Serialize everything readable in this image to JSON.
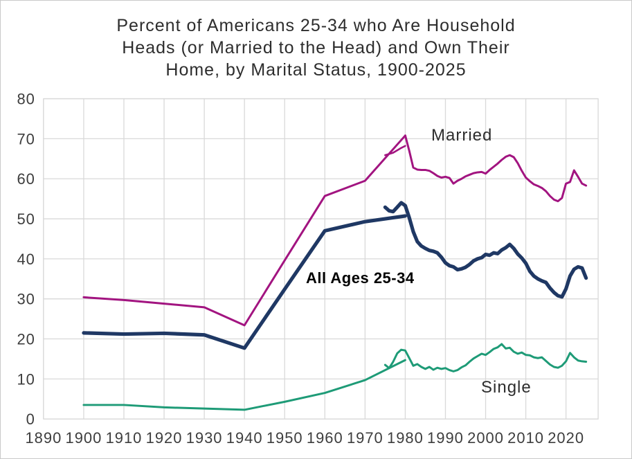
{
  "title": {
    "line1": "Percent of Americans 25-34 who Are Household",
    "line2": "Heads (or Married to the Head) and Own Their",
    "line3": "Home, by Marital Status, 1900-2025"
  },
  "series_labels": {
    "married": "Married",
    "all_ages": "All Ages 25-34",
    "single": "Single"
  },
  "colors": {
    "married": "#A21480",
    "all_ages": "#1F3864",
    "single": "#1E9B77",
    "gridline": "#D9D9D9",
    "tick_text": "#3D3D3D",
    "title_text": "#2D2D2D",
    "background": "#FFFFFF"
  },
  "chart_data": {
    "type": "line",
    "title": "Percent of Americans 25-34 who Are Household Heads (or Married to the Head) and Own Their Home, by Marital Status, 1900-2025",
    "xlabel": "",
    "ylabel": "",
    "x_axis": {
      "min": 1890,
      "max": 2028,
      "tick_labels": [
        1890,
        1900,
        1910,
        1920,
        1930,
        1940,
        1950,
        1960,
        1970,
        1980,
        1990,
        2000,
        2010,
        2020
      ],
      "gridlines": true
    },
    "y_axis": {
      "min": 0,
      "max": 80,
      "tick_labels": [
        0,
        10,
        20,
        30,
        40,
        50,
        60,
        70,
        80
      ],
      "gridlines": true
    },
    "legend": "inline text labels next to lines",
    "series": [
      {
        "id": "single-census-line",
        "name": "Single (decennial 1900-1980)",
        "color_key": "single",
        "stroke_width": 3,
        "years": [
          1900,
          1910,
          1920,
          1930,
          1940,
          1950,
          1960,
          1970,
          1980
        ],
        "values": [
          3.5,
          3.5,
          2.9,
          2.6,
          2.3,
          4.3,
          6.5,
          9.7,
          14.7
        ]
      },
      {
        "id": "single-annual-line",
        "name": "Single (annual 1975-2025)",
        "color_key": "single",
        "stroke_width": 3,
        "start_year": 1975,
        "values": [
          13.5,
          12.7,
          14.3,
          16.4,
          17.3,
          17.1,
          15.2,
          13.3,
          13.7,
          13.0,
          12.5,
          13.0,
          12.3,
          12.8,
          12.5,
          12.7,
          12.2,
          11.9,
          12.2,
          12.9,
          13.4,
          14.3,
          15.1,
          15.7,
          16.3,
          16.0,
          16.7,
          17.5,
          17.9,
          18.7,
          17.6,
          17.8,
          16.8,
          16.3,
          16.6,
          16.0,
          15.9,
          15.4,
          15.2,
          15.4,
          14.5,
          13.6,
          13.0,
          12.8,
          13.3,
          14.4,
          16.5,
          15.4,
          14.6,
          14.4,
          14.3
        ]
      },
      {
        "id": "all-ages-census-line",
        "name": "All Ages 25-34 (decennial 1900-1980)",
        "color_key": "all_ages",
        "stroke_width": 5.2,
        "years": [
          1900,
          1910,
          1920,
          1930,
          1940,
          1950,
          1960,
          1970,
          1980
        ],
        "values": [
          21.5,
          21.2,
          21.4,
          21.0,
          17.7,
          32.4,
          47.0,
          49.3,
          50.7
        ]
      },
      {
        "id": "all-ages-annual-line",
        "name": "All Ages 25-34 (annual 1975-2025)",
        "color_key": "all_ages",
        "stroke_width": 5.2,
        "start_year": 1975,
        "values": [
          52.9,
          52.0,
          51.8,
          52.9,
          54.0,
          53.3,
          50.3,
          46.8,
          44.3,
          43.2,
          42.6,
          42.1,
          41.9,
          41.5,
          40.4,
          39.0,
          38.3,
          38.0,
          37.3,
          37.5,
          37.9,
          38.6,
          39.5,
          40.0,
          40.3,
          41.1,
          40.9,
          41.5,
          41.3,
          42.2,
          42.8,
          43.6,
          42.6,
          41.2,
          40.2,
          38.9,
          36.9,
          35.7,
          35.0,
          34.5,
          34.1,
          32.7,
          31.6,
          30.8,
          30.5,
          32.5,
          35.7,
          37.4,
          38.0,
          37.7,
          35.2
        ]
      },
      {
        "id": "married-census-line",
        "name": "Married (decennial 1900-1980)",
        "color_key": "married",
        "stroke_width": 3,
        "years": [
          1900,
          1910,
          1920,
          1930,
          1940,
          1950,
          1960,
          1970,
          1980
        ],
        "values": [
          30.4,
          29.7,
          28.8,
          27.9,
          23.4,
          39.6,
          55.7,
          59.5,
          70.8
        ]
      },
      {
        "id": "married-overlap-line",
        "name": "Married (annual overlap segment 1975-1980)",
        "color_key": "married",
        "stroke_width": 2.6,
        "start_year": 1975,
        "values": [
          65.9,
          66.2,
          66.5,
          67.1,
          67.7,
          68.2
        ]
      },
      {
        "id": "married-annual-line",
        "name": "Married (annual 1980-2025)",
        "color_key": "married",
        "stroke_width": 3,
        "start_year": 1980,
        "values": [
          70.8,
          67.0,
          62.8,
          62.3,
          62.2,
          62.2,
          62.0,
          61.4,
          60.7,
          60.3,
          60.5,
          60.2,
          58.8,
          59.5,
          60.0,
          60.6,
          61.0,
          61.4,
          61.6,
          61.7,
          61.3,
          62.2,
          63.0,
          63.8,
          64.7,
          65.5,
          65.9,
          65.4,
          63.9,
          62.0,
          60.3,
          59.4,
          58.6,
          58.2,
          57.7,
          56.9,
          55.7,
          54.8,
          54.4,
          55.2,
          58.8,
          59.2,
          62.1,
          60.5,
          58.8,
          58.3
        ]
      }
    ]
  }
}
